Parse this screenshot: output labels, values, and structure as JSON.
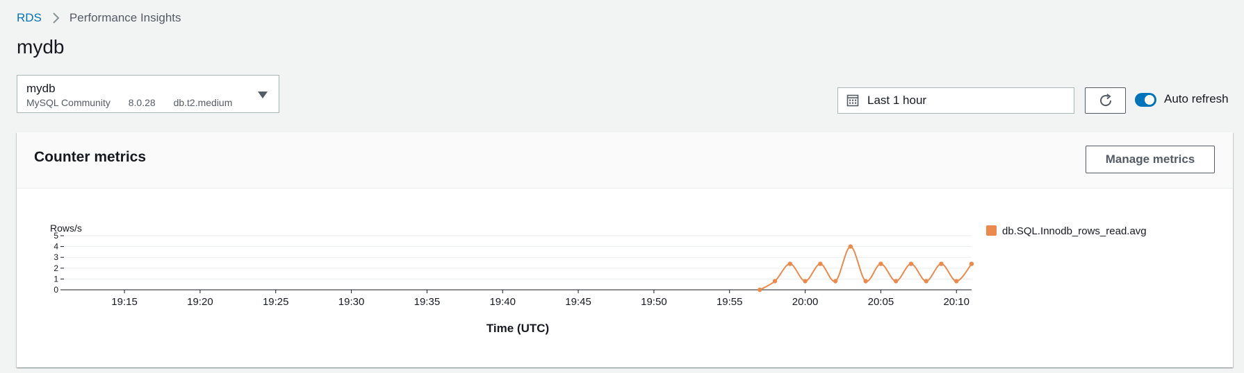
{
  "breadcrumb": {
    "root": "RDS",
    "current": "Performance Insights"
  },
  "page_title": "mydb",
  "db_selector": {
    "name": "mydb",
    "engine": "MySQL Community",
    "version": "8.0.28",
    "instance_class": "db.t2.medium"
  },
  "time_range": {
    "label": "Last 1 hour"
  },
  "auto_refresh": {
    "label": "Auto refresh",
    "enabled": true
  },
  "panel": {
    "title": "Counter metrics",
    "manage_label": "Manage metrics"
  },
  "colors": {
    "accent": "#0073bb",
    "series": "#eb8a4c",
    "link": "#0073bb"
  },
  "chart_data": {
    "type": "line",
    "ylabel": "Rows/s",
    "xlabel": "Time (UTC)",
    "ylim": [
      0,
      5
    ],
    "yticks": [
      0,
      1,
      2,
      3,
      4,
      5
    ],
    "xlim": [
      "19:11",
      "20:11"
    ],
    "xticks": [
      "19:15",
      "19:20",
      "19:25",
      "19:30",
      "19:35",
      "19:40",
      "19:45",
      "19:50",
      "19:55",
      "20:00",
      "20:05",
      "20:10"
    ],
    "grid": true,
    "legend": "right",
    "series": [
      {
        "name": "db.SQL.Innodb_rows_read.avg",
        "color": "#eb8a4c",
        "x": [
          "19:57",
          "19:58",
          "19:59",
          "20:00",
          "20:01",
          "20:02",
          "20:03",
          "20:04",
          "20:05",
          "20:06",
          "20:07",
          "20:08",
          "20:09",
          "20:10",
          "20:11"
        ],
        "y": [
          0,
          0.8,
          2.4,
          0.8,
          2.4,
          0.8,
          4.0,
          0.8,
          2.4,
          0.8,
          2.4,
          0.8,
          2.4,
          0.8,
          2.4
        ]
      }
    ]
  }
}
